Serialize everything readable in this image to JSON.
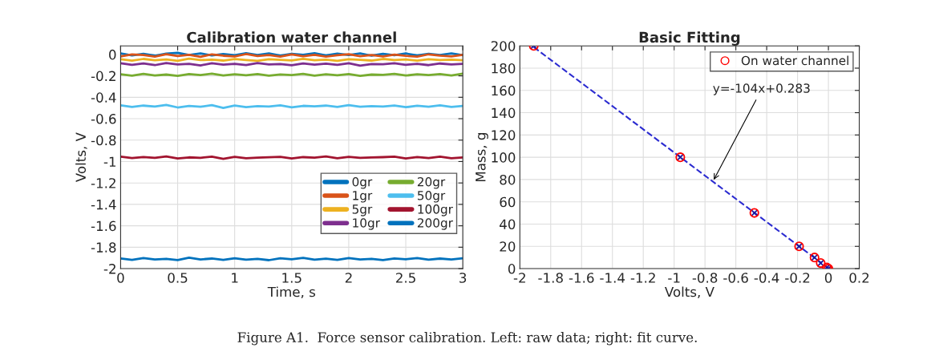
{
  "chart_data": [
    {
      "type": "line",
      "title": "Calibration water channel",
      "xlabel": "Time, s",
      "ylabel": "Volts, V",
      "x": [
        0,
        0.1,
        0.2,
        0.3,
        0.4,
        0.5,
        0.6,
        0.7,
        0.8,
        0.9,
        1.0,
        1.1,
        1.2,
        1.3,
        1.4,
        1.5,
        1.6,
        1.7,
        1.8,
        1.9,
        2.0,
        2.1,
        2.2,
        2.3,
        2.4,
        2.5,
        2.6,
        2.7,
        2.8,
        2.9,
        3.0
      ],
      "series": [
        {
          "name": "0gr",
          "color": "#0072bd",
          "values": [
            0.01,
            -0.01,
            0.005,
            -0.012,
            0.008,
            0.015,
            -0.006,
            0.01,
            -0.01,
            0.004,
            -0.008,
            0.012,
            -0.005,
            0.009,
            -0.011,
            0.006,
            -0.004,
            0.011,
            -0.009,
            0.007,
            -0.006,
            0.01,
            -0.012,
            0.005,
            -0.007,
            0.009,
            -0.01,
            0.006,
            -0.005,
            0.01,
            -0.008
          ]
        },
        {
          "name": "1gr",
          "color": "#d95319",
          "values": [
            -0.018,
            0.0,
            -0.006,
            -0.02,
            0.002,
            -0.015,
            -0.004,
            -0.022,
            0.001,
            -0.012,
            -0.019,
            0.003,
            -0.014,
            -0.005,
            -0.021,
            0.0,
            -0.016,
            -0.003,
            -0.02,
            -0.008,
            0.002,
            -0.017,
            -0.006,
            -0.019,
            -0.001,
            -0.013,
            -0.021,
            0.001,
            -0.011,
            -0.018,
            -0.004
          ]
        },
        {
          "name": "5gr",
          "color": "#edb120",
          "values": [
            -0.045,
            -0.058,
            -0.042,
            -0.055,
            -0.047,
            -0.06,
            -0.04,
            -0.053,
            -0.049,
            -0.057,
            -0.043,
            -0.052,
            -0.06,
            -0.044,
            -0.051,
            -0.056,
            -0.041,
            -0.054,
            -0.048,
            -0.059,
            -0.045,
            -0.05,
            -0.057,
            -0.042,
            -0.053,
            -0.047,
            -0.058,
            -0.044,
            -0.052,
            -0.049,
            -0.055
          ]
        },
        {
          "name": "10gr",
          "color": "#7e2f8e",
          "values": [
            -0.082,
            -0.097,
            -0.085,
            -0.1,
            -0.08,
            -0.094,
            -0.088,
            -0.102,
            -0.083,
            -0.096,
            -0.087,
            -0.099,
            -0.081,
            -0.093,
            -0.09,
            -0.101,
            -0.084,
            -0.095,
            -0.086,
            -0.098,
            -0.082,
            -0.104,
            -0.089,
            -0.092,
            -0.083,
            -0.097,
            -0.087,
            -0.1,
            -0.085,
            -0.094,
            -0.088
          ]
        },
        {
          "name": "20gr",
          "color": "#77ac30",
          "values": [
            -0.185,
            -0.198,
            -0.182,
            -0.196,
            -0.188,
            -0.2,
            -0.184,
            -0.193,
            -0.179,
            -0.197,
            -0.186,
            -0.194,
            -0.183,
            -0.199,
            -0.187,
            -0.192,
            -0.181,
            -0.198,
            -0.185,
            -0.195,
            -0.183,
            -0.2,
            -0.188,
            -0.191,
            -0.182,
            -0.197,
            -0.186,
            -0.193,
            -0.184,
            -0.196,
            -0.18
          ]
        },
        {
          "name": "50gr",
          "color": "#4dbeee",
          "values": [
            -0.475,
            -0.49,
            -0.478,
            -0.486,
            -0.472,
            -0.495,
            -0.481,
            -0.488,
            -0.474,
            -0.499,
            -0.477,
            -0.492,
            -0.483,
            -0.487,
            -0.476,
            -0.494,
            -0.48,
            -0.485,
            -0.478,
            -0.491,
            -0.474,
            -0.489,
            -0.482,
            -0.486,
            -0.477,
            -0.493,
            -0.479,
            -0.488,
            -0.475,
            -0.49,
            -0.481
          ]
        },
        {
          "name": "100gr",
          "color": "#a2142f",
          "values": [
            -0.955,
            -0.968,
            -0.958,
            -0.966,
            -0.952,
            -0.972,
            -0.961,
            -0.965,
            -0.954,
            -0.975,
            -0.957,
            -0.969,
            -0.963,
            -0.96,
            -0.956,
            -0.971,
            -0.959,
            -0.964,
            -0.953,
            -0.97,
            -0.957,
            -0.966,
            -0.962,
            -0.959,
            -0.955,
            -0.972,
            -0.958,
            -0.967,
            -0.954,
            -0.969,
            -0.961
          ]
        },
        {
          "name": "200gr",
          "color": "#0072bd",
          "values": [
            -1.905,
            -1.918,
            -1.902,
            -1.915,
            -1.908,
            -1.92,
            -1.897,
            -1.914,
            -1.906,
            -1.919,
            -1.903,
            -1.916,
            -1.909,
            -1.921,
            -1.904,
            -1.913,
            -1.9,
            -1.917,
            -1.907,
            -1.918,
            -1.902,
            -1.915,
            -1.908,
            -1.92,
            -1.905,
            -1.912,
            -1.901,
            -1.917,
            -1.906,
            -1.914,
            -1.903
          ]
        }
      ],
      "xlim": [
        0,
        3
      ],
      "xticks": [
        0,
        0.5,
        1,
        1.5,
        2,
        2.5,
        3
      ],
      "ylim": [
        -2,
        0.08
      ],
      "yticks": [
        -2,
        -1.8,
        -1.6,
        -1.4,
        -1.2,
        -1,
        -0.8,
        -0.6,
        -0.4,
        -0.2,
        0
      ],
      "grid": true,
      "legend": "bottom right",
      "line_style": "solid",
      "marker": "none",
      "annotations": [
        "Figure A1.  Force sensor calibration. Left: raw data; right: fit curve."
      ]
    },
    {
      "type": "scatter",
      "title": "Basic Fitting",
      "xlabel": "Volts, V",
      "ylabel": "Mass, g",
      "series": [
        {
          "type": "line",
          "color": "#2b2bd0",
          "line_style": "dashed",
          "marker": "none",
          "x": [
            -1.91,
            0
          ],
          "values": [
            198.9,
            0.3
          ]
        },
        {
          "type": "scatter",
          "color": "#1a1aa0",
          "marker": "cross",
          "x": [
            -1.91,
            -0.96,
            -0.48,
            -0.19,
            -0.09,
            -0.05,
            -0.01,
            0
          ],
          "values": [
            200,
            100,
            50,
            20,
            10,
            5,
            1,
            0
          ]
        },
        {
          "type": "scatter",
          "name": "On water channel",
          "color": "#ff0000",
          "marker": "circle",
          "x": [
            -1.91,
            -0.96,
            -0.48,
            -0.19,
            -0.09,
            -0.05,
            -0.01,
            0
          ],
          "values": [
            200,
            100,
            50,
            20,
            10,
            5,
            1,
            0
          ]
        }
      ],
      "xlim": [
        -2,
        0.2
      ],
      "xticks": [
        -2,
        -1.8,
        -1.6,
        -1.4,
        -1.2,
        -1,
        -0.8,
        -0.6,
        -0.4,
        -0.2,
        0,
        0.2
      ],
      "ylim": [
        0,
        200
      ],
      "yticks": [
        0,
        20,
        40,
        60,
        80,
        100,
        120,
        140,
        160,
        180,
        200
      ],
      "grid": true,
      "legend": "top right",
      "annotations": [
        {
          "text": "y=-104x+0.283",
          "x": -0.75,
          "y": 78
        }
      ]
    }
  ]
}
